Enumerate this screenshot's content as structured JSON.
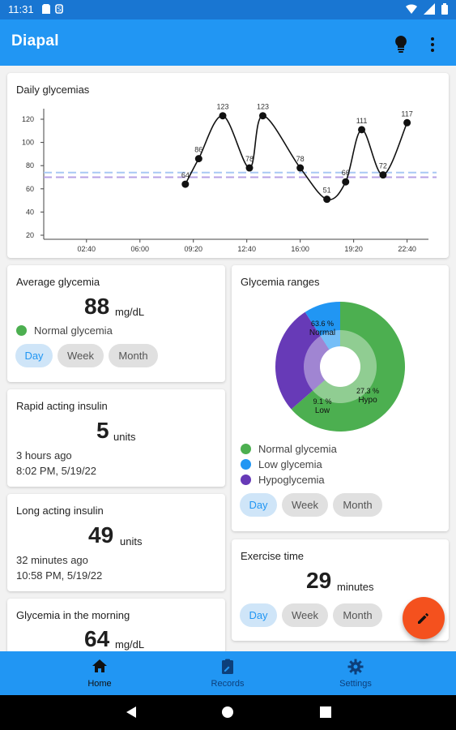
{
  "status_bar": {
    "time": "11:31"
  },
  "app": {
    "title": "Diapal"
  },
  "daily_chart": {
    "title": "Daily glycemias",
    "chart_data": {
      "type": "line",
      "title": "Daily glycemias",
      "x_ticks": [
        "02:40",
        "06:00",
        "09:20",
        "12:40",
        "16:00",
        "19:20",
        "22:40"
      ],
      "y_ticks": [
        20,
        40,
        60,
        80,
        100,
        120
      ],
      "ylim": [
        20,
        130
      ],
      "series": [
        {
          "x": [
            "08:50",
            "09:40",
            "11:10",
            "12:50",
            "13:40",
            "16:00",
            "17:40",
            "18:50",
            "19:50",
            "21:10",
            "22:40"
          ],
          "values": [
            64,
            86,
            123,
            78,
            123,
            78,
            51,
            66,
            111,
            72,
            117
          ]
        }
      ],
      "reference_lines": [
        74,
        70
      ],
      "reference_colors": [
        "#a8c8f4",
        "#b7a1e4"
      ],
      "grid": false
    }
  },
  "average": {
    "title": "Average glycemia",
    "value": "88",
    "unit": "mg/dL",
    "status": "Normal glycemia",
    "status_color": "#4caf50"
  },
  "chips": {
    "day": "Day",
    "week": "Week",
    "month": "Month"
  },
  "ranges": {
    "title": "Glycemia ranges",
    "chart_data": {
      "type": "pie",
      "slices": [
        {
          "label": "Normal",
          "value": 63.6,
          "color": "#4caf50",
          "text": "63.6 %",
          "name": "Normal"
        },
        {
          "label": "Hypo",
          "value": 27.3,
          "color": "#673ab7",
          "text": "27.3 %",
          "name": "Hypo"
        },
        {
          "label": "Low",
          "value": 9.1,
          "color": "#2196f3",
          "text": "9.1 %",
          "name": "Low"
        }
      ]
    },
    "legend": [
      "Normal glycemia",
      "Low glycemia",
      "Hypoglycemia"
    ]
  },
  "rapid": {
    "title": "Rapid acting insulin",
    "value": "5",
    "unit": "units",
    "ago": "3 hours ago",
    "datetime": "8:02 PM, 5/19/22"
  },
  "long": {
    "title": "Long acting insulin",
    "value": "49",
    "unit": "units",
    "ago": "32 minutes ago",
    "datetime": "10:58 PM, 5/19/22"
  },
  "exercise": {
    "title": "Exercise time",
    "value": "29",
    "unit": "minutes"
  },
  "morning": {
    "title": "Glycemia in the morning",
    "value": "64",
    "unit": "mg/dL"
  },
  "nav": {
    "home": "Home",
    "records": "Records",
    "settings": "Settings"
  }
}
